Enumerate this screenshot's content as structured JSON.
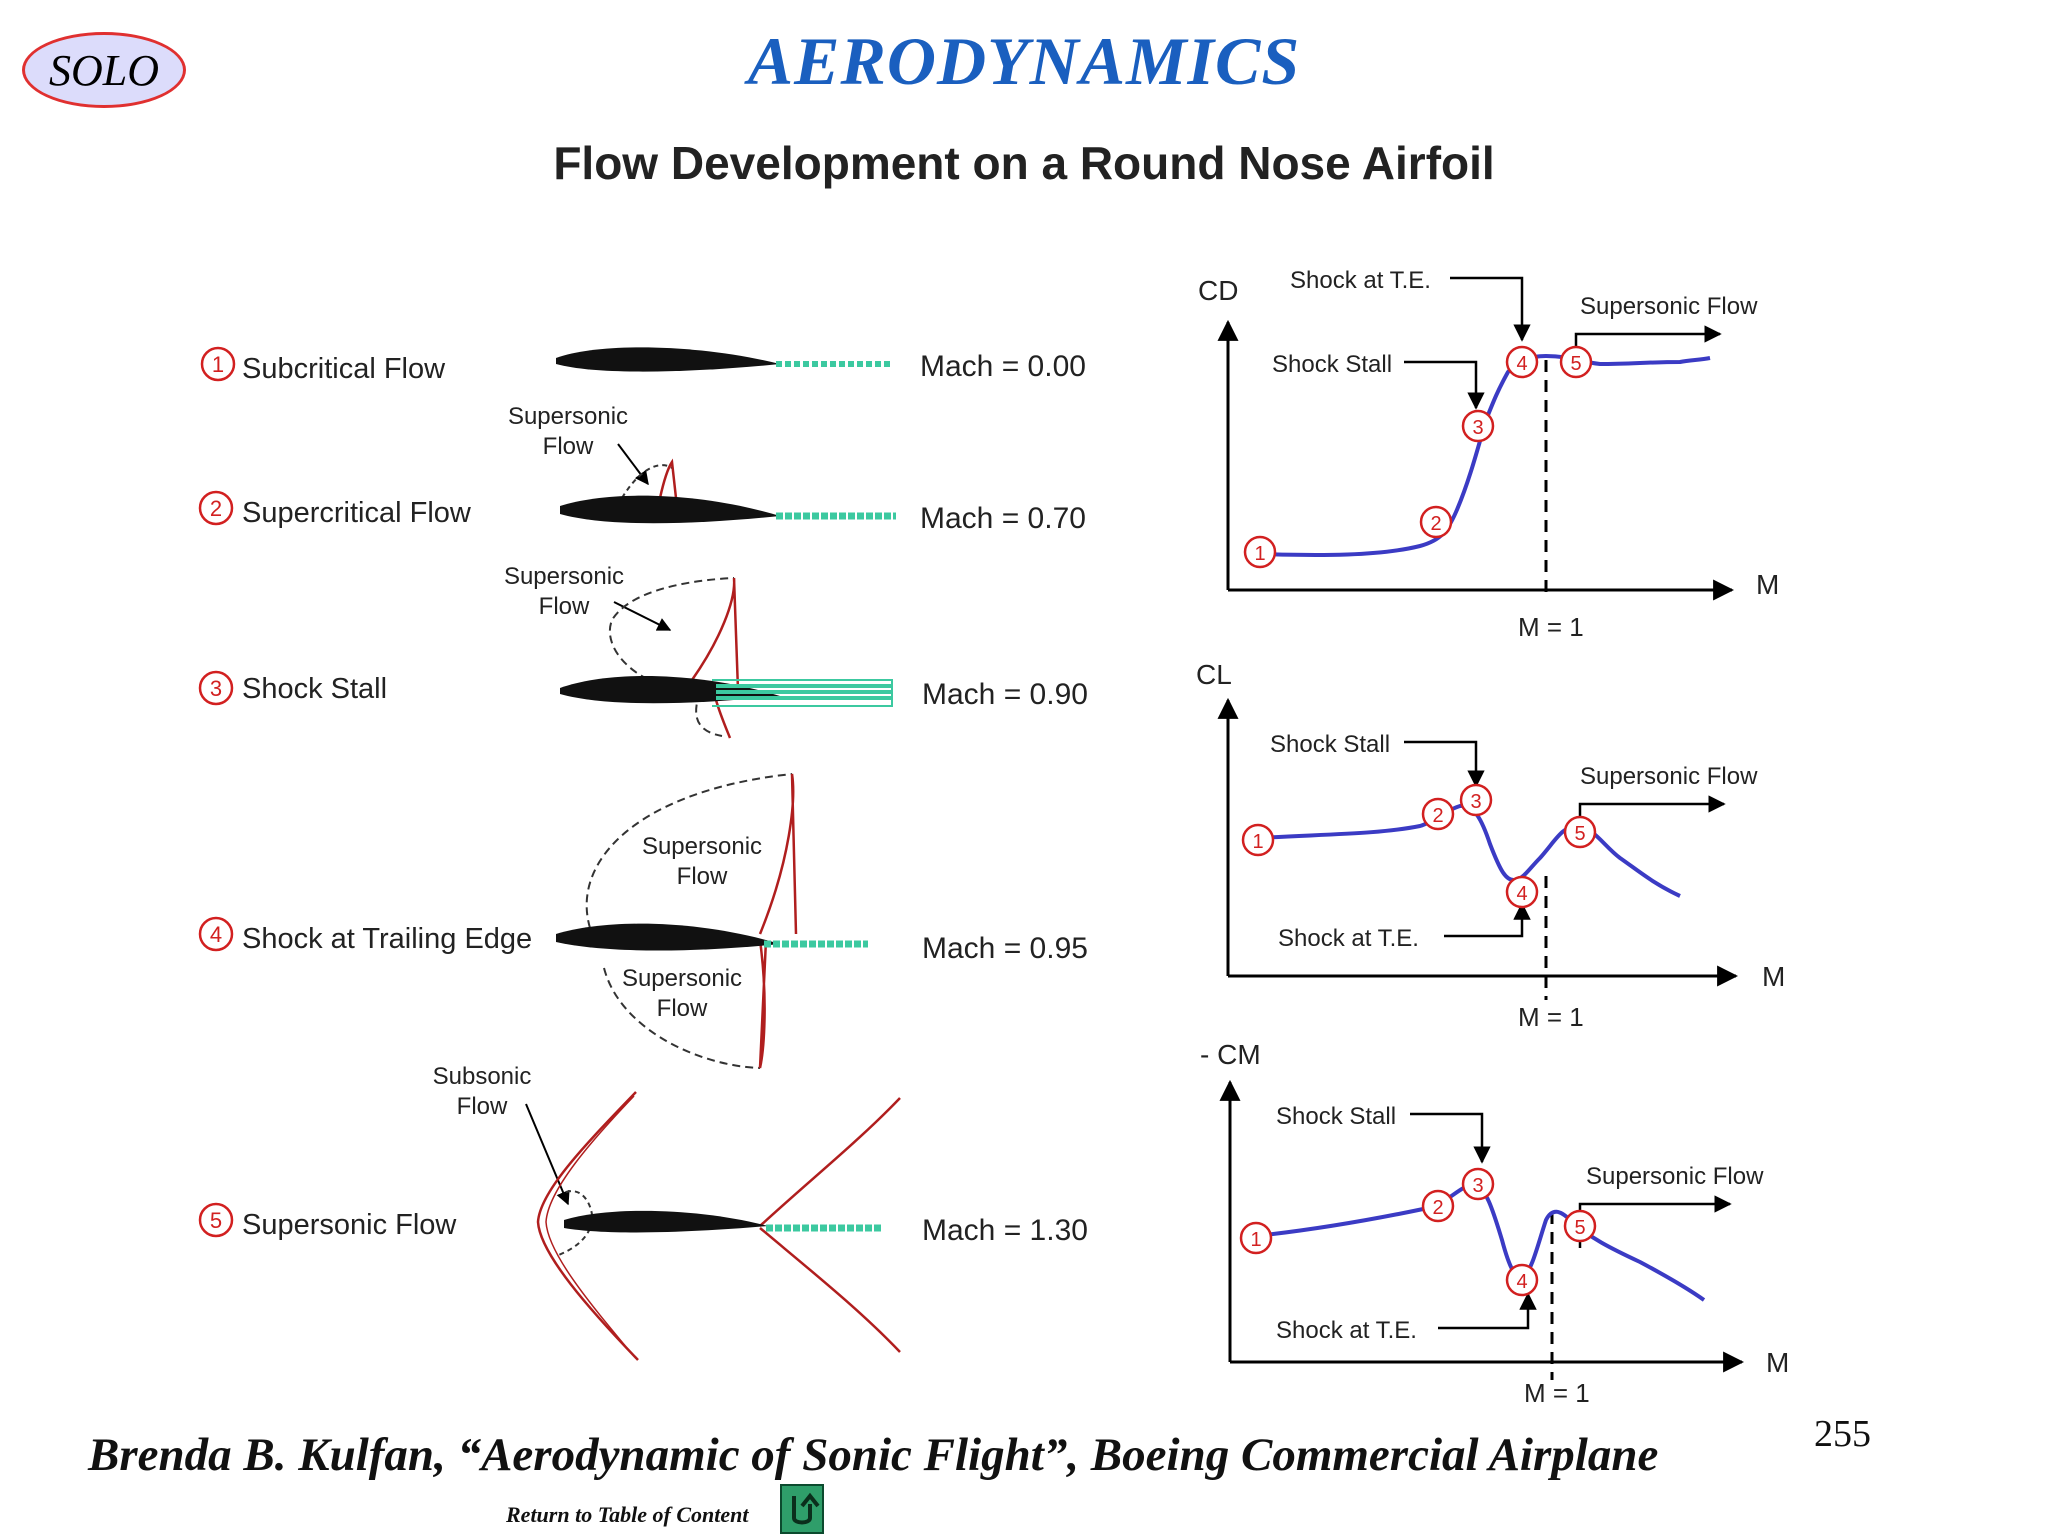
{
  "badge": {
    "label": "SOLO"
  },
  "header": {
    "title": "AERODYNAMICS",
    "subtitle": "Flow Development on a Round Nose Airfoil"
  },
  "regimes": [
    {
      "num": "1",
      "label": "Subcritical Flow",
      "mach": "Mach = 0.00"
    },
    {
      "num": "2",
      "label": "Supercritical Flow",
      "mach": "Mach = 0.70"
    },
    {
      "num": "3",
      "label": "Shock Stall",
      "mach": "Mach = 0.90"
    },
    {
      "num": "4",
      "label": "Shock at Trailing Edge",
      "mach": "Mach = 0.95"
    },
    {
      "num": "5",
      "label": "Supersonic Flow",
      "mach": "Mach = 1.30"
    }
  ],
  "flow_labels": {
    "supersonic_line1": "Supersonic",
    "subsonic_line1": "Subsonic",
    "flow_line2": "Flow"
  },
  "charts": [
    {
      "ylabel": "CD",
      "xlabel": "M",
      "m1_label": "M = 1",
      "annotations": {
        "shock_te": "Shock at T.E.",
        "shock_stall": "Shock Stall",
        "supersonic": "Supersonic Flow"
      },
      "points": [
        "1",
        "2",
        "3",
        "4",
        "5"
      ]
    },
    {
      "ylabel": "CL",
      "xlabel": "M",
      "m1_label": "M = 1",
      "annotations": {
        "shock_te": "Shock at T.E.",
        "shock_stall": "Shock Stall",
        "supersonic": "Supersonic Flow"
      },
      "points": [
        "1",
        "2",
        "3",
        "4",
        "5"
      ]
    },
    {
      "ylabel": "- CM",
      "xlabel": "M",
      "m1_label": "M = 1",
      "annotations": {
        "shock_te": "Shock at T.E.",
        "shock_stall": "Shock Stall",
        "supersonic": "Supersonic Flow"
      },
      "points": [
        "1",
        "2",
        "3",
        "4",
        "5"
      ]
    }
  ],
  "colors": {
    "curve": "#3b3bc4",
    "shock": "#b01e1e",
    "wake": "#3cc9a0",
    "title": "#1a5fbf",
    "marker": "#d22020"
  },
  "footer": {
    "citation": "Brenda B. Kulfan, “Aerodynamic of Sonic Flight”, Boeing Commercial Airplane",
    "page_number": "255",
    "toc_link": "Return to Table of Content",
    "toc_icon": "return-arrow-icon"
  }
}
